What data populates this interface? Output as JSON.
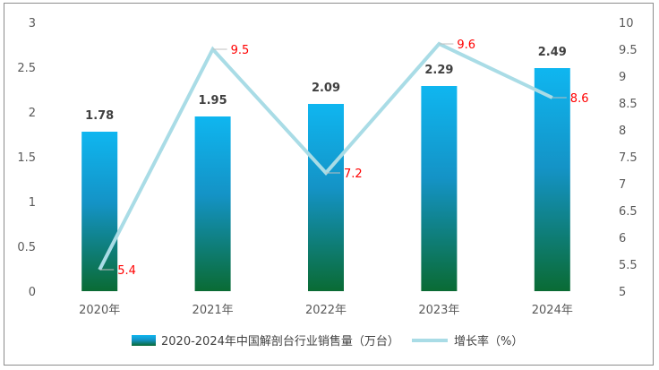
{
  "chart_data": {
    "type": "bar",
    "categories": [
      "2020年",
      "2021年",
      "2022年",
      "2023年",
      "2024年"
    ],
    "series": [
      {
        "name": "2020-2024年中国解剖台行业销售量（万台）",
        "type": "bar",
        "axis": "left",
        "values": [
          1.78,
          1.95,
          2.09,
          2.29,
          2.49
        ],
        "value_labels": [
          "1.78",
          "1.95",
          "2.09",
          "2.29",
          "2.49"
        ]
      },
      {
        "name": "增长率（%）",
        "type": "line",
        "axis": "right",
        "values": [
          5.4,
          9.5,
          7.2,
          9.6,
          8.6
        ],
        "value_labels": [
          "5.4",
          "9.5",
          "7.2",
          "9.6",
          "8.6"
        ]
      }
    ],
    "y_left": {
      "range": [
        0,
        3
      ],
      "ticks": [
        "0",
        "0.5",
        "1",
        "1.5",
        "2",
        "2.5",
        "3"
      ]
    },
    "y_right": {
      "range": [
        5,
        10
      ],
      "ticks": [
        "5",
        "5.5",
        "6",
        "6.5",
        "7",
        "7.5",
        "8",
        "8.5",
        "9",
        "9.5",
        "10"
      ]
    },
    "grid": false,
    "legend_position": "bottom",
    "colors": {
      "bar_top": "#0fb6f0",
      "bar_bottom": "#0a6b34",
      "line": "#a9dce6",
      "line_label": "#ff0000",
      "bar_label": "#404040",
      "axis_text": "#595959",
      "frame": "#8c8c8c"
    }
  }
}
